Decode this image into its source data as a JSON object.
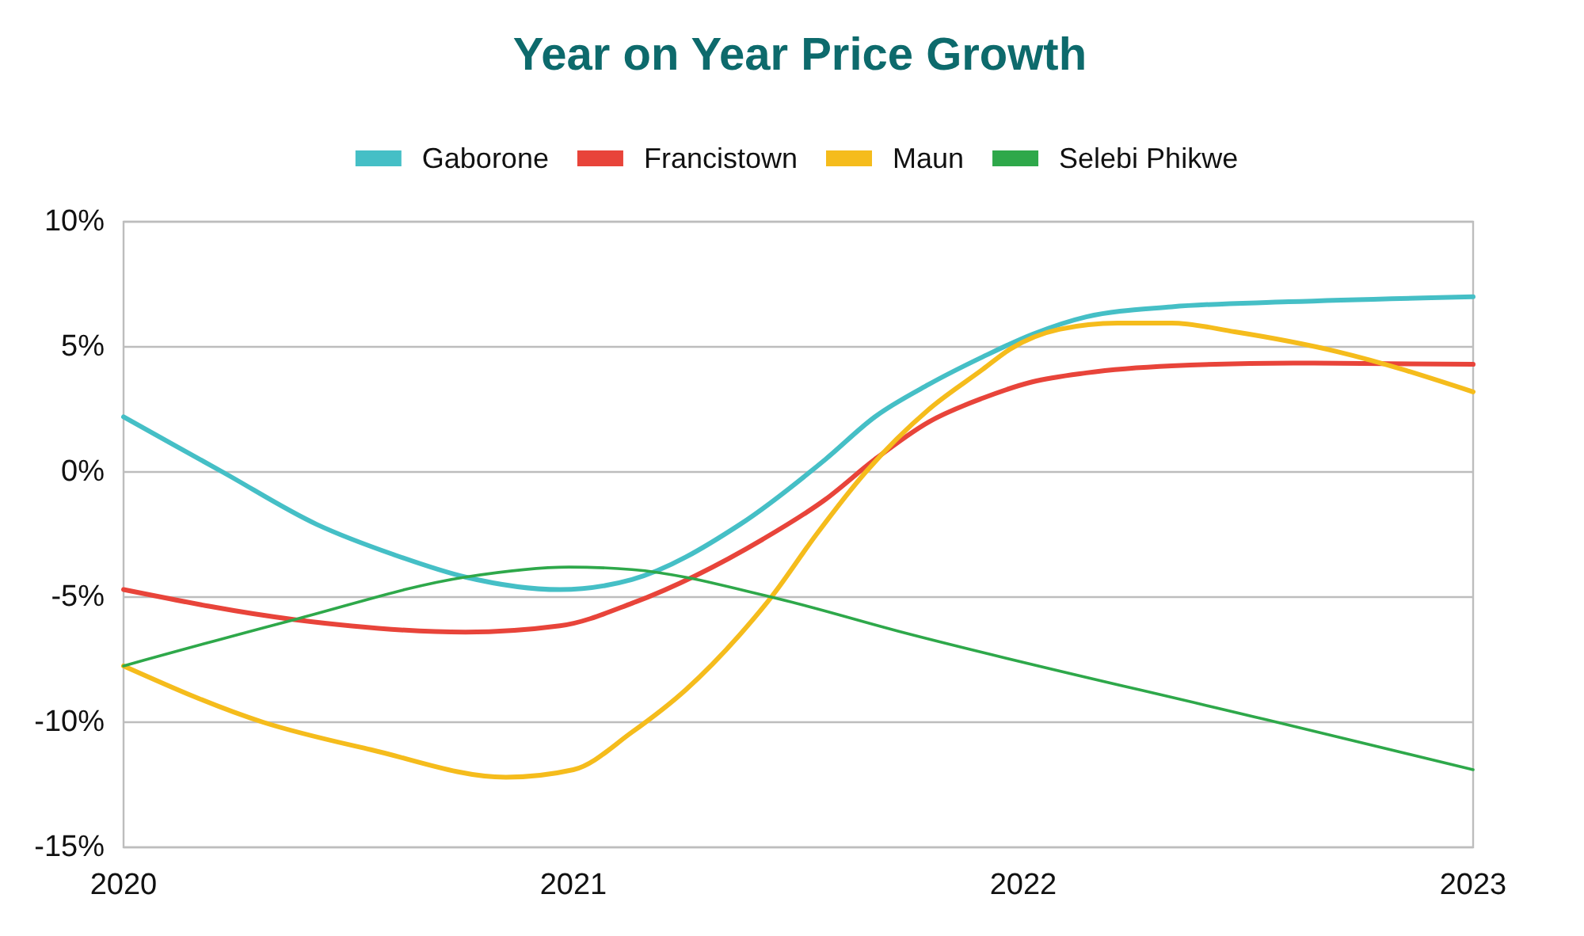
{
  "chart_data": {
    "type": "line",
    "title": "Year on Year Price Growth",
    "xlim": [
      2020,
      2023
    ],
    "xticks": [
      2020,
      2021,
      2022,
      2023
    ],
    "ylim": [
      -15,
      10
    ],
    "yticks": [
      {
        "value": -15,
        "label": "-15%"
      },
      {
        "value": -10,
        "label": "-10%"
      },
      {
        "value": -5,
        "label": "-5%"
      },
      {
        "value": 0,
        "label": "0%"
      },
      {
        "value": 5,
        "label": "5%"
      },
      {
        "value": 10,
        "label": "10%"
      }
    ],
    "grid": "y",
    "legend": "top",
    "series": [
      {
        "name": "Gaborone",
        "color": "#45bfc6",
        "x": [
          2020,
          2020.22,
          2020.43,
          2020.6,
          2020.76,
          2020.97,
          2021.13,
          2021.37,
          2021.56,
          2021.67,
          2021.79,
          2021.91,
          2022.02,
          2022.14,
          2022.33,
          2022.59,
          2023
        ],
        "values": [
          2.2,
          0,
          -2.1,
          -3.3,
          -4.2,
          -4.7,
          -4.3,
          -2.1,
          0.5,
          2.2,
          3.5,
          4.6,
          5.5,
          6.2,
          6.6,
          6.8,
          7.0
        ]
      },
      {
        "name": "Francistown",
        "color": "#e8443a",
        "x": [
          2020,
          2020.38,
          2020.76,
          2020.97,
          2021.13,
          2021.42,
          2021.56,
          2021.67,
          2021.79,
          2021.91,
          2022.02,
          2022.14,
          2022.33,
          2022.6,
          2023
        ],
        "values": [
          -4.7,
          -5.9,
          -6.4,
          -6.15,
          -5.25,
          -2.7,
          -1.1,
          0.5,
          2.0,
          2.95,
          3.6,
          3.96,
          4.24,
          4.35,
          4.3
        ]
      },
      {
        "name": "Maun",
        "color": "#f5bc1c",
        "x": [
          2020,
          2020.31,
          2020.55,
          2020.85,
          2021.0,
          2021.13,
          2021.25,
          2021.37,
          2021.44,
          2021.54,
          2021.65,
          2021.79,
          2021.91,
          2021.97,
          2022.08,
          2022.21,
          2022.33,
          2022.47,
          2022.7,
          2023
        ],
        "values": [
          -7.75,
          -10.0,
          -11.1,
          -12.2,
          -11.9,
          -10.4,
          -8.7,
          -6.5,
          -5.0,
          -2.5,
          0,
          2.5,
          4.1,
          4.9,
          5.7,
          5.95,
          5.95,
          5.6,
          4.8,
          3.2
        ]
      },
      {
        "name": "Selebi Phikwe",
        "color": "#2ea84a",
        "x": [
          2020,
          2020.38,
          2020.76,
          2020.99,
          2021.13,
          2021.44,
          2021.73,
          2022.54,
          2023
        ],
        "values": [
          -7.75,
          -5.9,
          -4.2,
          -3.8,
          -3.9,
          -5.0,
          -6.4,
          -9.9,
          -11.9
        ]
      }
    ]
  }
}
